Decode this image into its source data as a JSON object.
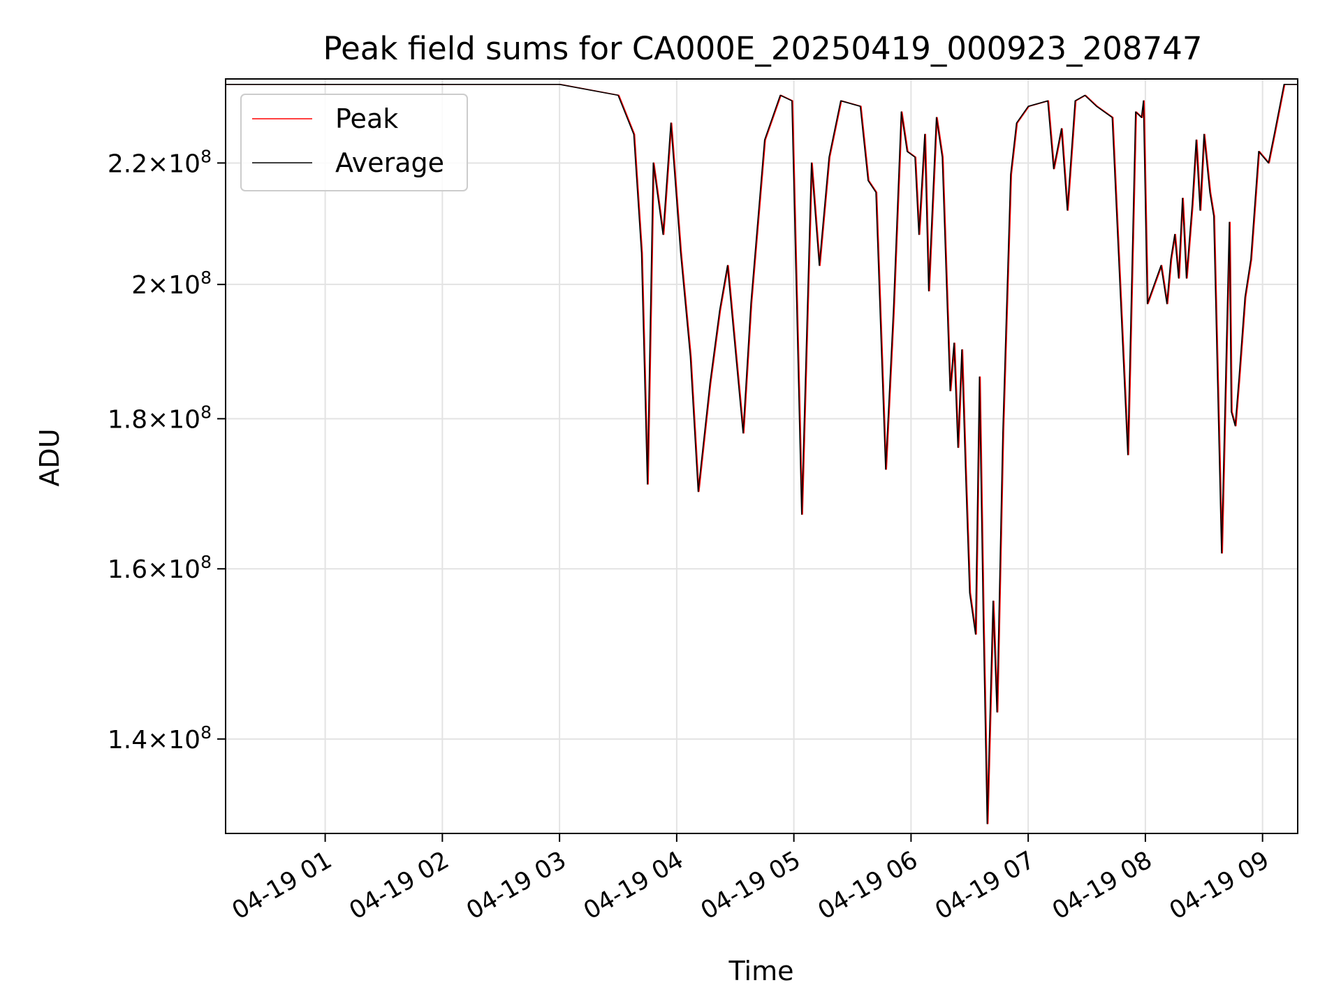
{
  "chart_data": {
    "type": "line",
    "title": "Peak field sums for CA000E_20250419_000923_208747",
    "xlabel": "Time",
    "ylabel": "ADU",
    "yscale": "log",
    "grid": true,
    "legend_position": "top-left",
    "xlim": [
      "2025-04-19 00:09",
      "2025-04-19 09:18"
    ],
    "ylim": [
      130000000,
      235000000
    ],
    "x_ticks": [
      {
        "value": "2025-04-19 01:00",
        "label": "04-19 01"
      },
      {
        "value": "2025-04-19 02:00",
        "label": "04-19 02"
      },
      {
        "value": "2025-04-19 03:00",
        "label": "04-19 03"
      },
      {
        "value": "2025-04-19 04:00",
        "label": "04-19 04"
      },
      {
        "value": "2025-04-19 05:00",
        "label": "04-19 05"
      },
      {
        "value": "2025-04-19 06:00",
        "label": "04-19 06"
      },
      {
        "value": "2025-04-19 07:00",
        "label": "04-19 07"
      },
      {
        "value": "2025-04-19 08:00",
        "label": "04-19 08"
      },
      {
        "value": "2025-04-19 09:00",
        "label": "04-19 09"
      }
    ],
    "y_ticks": [
      {
        "value": 140000000,
        "mant": "1.4",
        "exp": "8"
      },
      {
        "value": 160000000,
        "mant": "1.6",
        "exp": "8"
      },
      {
        "value": 180000000,
        "mant": "1.8",
        "exp": "8"
      },
      {
        "value": 200000000,
        "mant": "2",
        "exp": "8"
      },
      {
        "value": 220000000,
        "mant": "2.2",
        "exp": "8"
      }
    ],
    "x": [
      "2025-04-19 00:09",
      "2025-04-19 01:00",
      "2025-04-19 02:00",
      "2025-04-19 03:00",
      "2025-04-19 03:30",
      "2025-04-19 03:38",
      "2025-04-19 03:42",
      "2025-04-19 03:45",
      "2025-04-19 03:48",
      "2025-04-19 03:53",
      "2025-04-19 03:57",
      "2025-04-19 04:02",
      "2025-04-19 04:07",
      "2025-04-19 04:11",
      "2025-04-19 04:17",
      "2025-04-19 04:22",
      "2025-04-19 04:26",
      "2025-04-19 04:30",
      "2025-04-19 04:34",
      "2025-04-19 04:38",
      "2025-04-19 04:45",
      "2025-04-19 04:53",
      "2025-04-19 04:59",
      "2025-04-19 05:04",
      "2025-04-19 05:09",
      "2025-04-19 05:13",
      "2025-04-19 05:18",
      "2025-04-19 05:24",
      "2025-04-19 05:34",
      "2025-04-19 05:38",
      "2025-04-19 05:42",
      "2025-04-19 05:47",
      "2025-04-19 05:51",
      "2025-04-19 05:55",
      "2025-04-19 05:58",
      "2025-04-19 06:02",
      "2025-04-19 06:04",
      "2025-04-19 06:07",
      "2025-04-19 06:09",
      "2025-04-19 06:13",
      "2025-04-19 06:16",
      "2025-04-19 06:20",
      "2025-04-19 06:22",
      "2025-04-19 06:24",
      "2025-04-19 06:26",
      "2025-04-19 06:28",
      "2025-04-19 06:30",
      "2025-04-19 06:33",
      "2025-04-19 06:35",
      "2025-04-19 06:37",
      "2025-04-19 06:39",
      "2025-04-19 06:42",
      "2025-04-19 06:44",
      "2025-04-19 06:47",
      "2025-04-19 06:51",
      "2025-04-19 06:54",
      "2025-04-19 07:00",
      "2025-04-19 07:10",
      "2025-04-19 07:13",
      "2025-04-19 07:17",
      "2025-04-19 07:20",
      "2025-04-19 07:24",
      "2025-04-19 07:29",
      "2025-04-19 07:35",
      "2025-04-19 07:43",
      "2025-04-19 07:51",
      "2025-04-19 07:55",
      "2025-04-19 07:58",
      "2025-04-19 07:59",
      "2025-04-19 08:01",
      "2025-04-19 08:08",
      "2025-04-19 08:11",
      "2025-04-19 08:13",
      "2025-04-19 08:15",
      "2025-04-19 08:17",
      "2025-04-19 08:19",
      "2025-04-19 08:21",
      "2025-04-19 08:24",
      "2025-04-19 08:26",
      "2025-04-19 08:28",
      "2025-04-19 08:30",
      "2025-04-19 08:33",
      "2025-04-19 08:35",
      "2025-04-19 08:39",
      "2025-04-19 08:43",
      "2025-04-19 08:44",
      "2025-04-19 08:46",
      "2025-04-19 08:48",
      "2025-04-19 08:51",
      "2025-04-19 08:54",
      "2025-04-19 08:58",
      "2025-04-19 09:03",
      "2025-04-19 09:06",
      "2025-04-19 09:11",
      "2025-04-19 09:18"
    ],
    "series": [
      {
        "name": "Peak",
        "color": "#ff0000",
        "values": [
          234000000,
          234000000,
          234000000,
          234000000,
          232000000,
          225000000,
          205000000,
          171000000,
          220000000,
          208000000,
          227000000,
          205000000,
          189000000,
          170000000,
          185000000,
          196000000,
          203000000,
          190000000,
          178000000,
          197000000,
          224000000,
          232000000,
          231000000,
          167000000,
          220000000,
          203000000,
          221000000,
          231000000,
          230000000,
          217000000,
          215000000,
          173000000,
          196000000,
          229000000,
          222000000,
          221000000,
          208000000,
          225000000,
          199000000,
          228000000,
          221000000,
          184000000,
          191000000,
          176000000,
          190000000,
          172000000,
          157000000,
          152000000,
          186000000,
          154000000,
          131000000,
          156000000,
          143000000,
          178000000,
          218000000,
          227000000,
          230000000,
          231000000,
          219000000,
          226000000,
          212000000,
          231000000,
          232000000,
          230000000,
          228000000,
          175000000,
          229000000,
          228000000,
          231000000,
          197000000,
          203000000,
          197000000,
          204000000,
          208000000,
          201000000,
          214000000,
          201000000,
          213000000,
          224000000,
          212000000,
          225000000,
          215000000,
          211000000,
          162000000,
          210000000,
          181000000,
          179000000,
          186000000,
          198000000,
          204000000,
          222000000,
          220000000,
          225000000,
          234000000,
          234000000
        ]
      },
      {
        "name": "Average",
        "color": "#000000",
        "values": [
          234000000,
          234000000,
          234000000,
          234000000,
          232000000,
          225000000,
          205000000,
          171000000,
          220000000,
          208000000,
          227000000,
          205000000,
          189000000,
          170000000,
          185000000,
          196000000,
          203000000,
          190000000,
          178000000,
          197000000,
          224000000,
          232000000,
          231000000,
          167000000,
          220000000,
          203000000,
          221000000,
          231000000,
          230000000,
          217000000,
          215000000,
          173000000,
          196000000,
          229000000,
          222000000,
          221000000,
          208000000,
          225000000,
          199000000,
          228000000,
          221000000,
          184000000,
          191000000,
          176000000,
          190000000,
          172000000,
          157000000,
          152000000,
          186000000,
          154000000,
          131000000,
          156000000,
          143000000,
          178000000,
          218000000,
          227000000,
          230000000,
          231000000,
          219000000,
          226000000,
          212000000,
          231000000,
          232000000,
          230000000,
          228000000,
          175000000,
          229000000,
          228000000,
          231000000,
          197000000,
          203000000,
          197000000,
          204000000,
          208000000,
          201000000,
          214000000,
          201000000,
          213000000,
          224000000,
          212000000,
          225000000,
          215000000,
          211000000,
          162000000,
          210000000,
          181000000,
          179000000,
          186000000,
          198000000,
          204000000,
          222000000,
          220000000,
          225000000,
          234000000,
          234000000
        ]
      }
    ]
  }
}
